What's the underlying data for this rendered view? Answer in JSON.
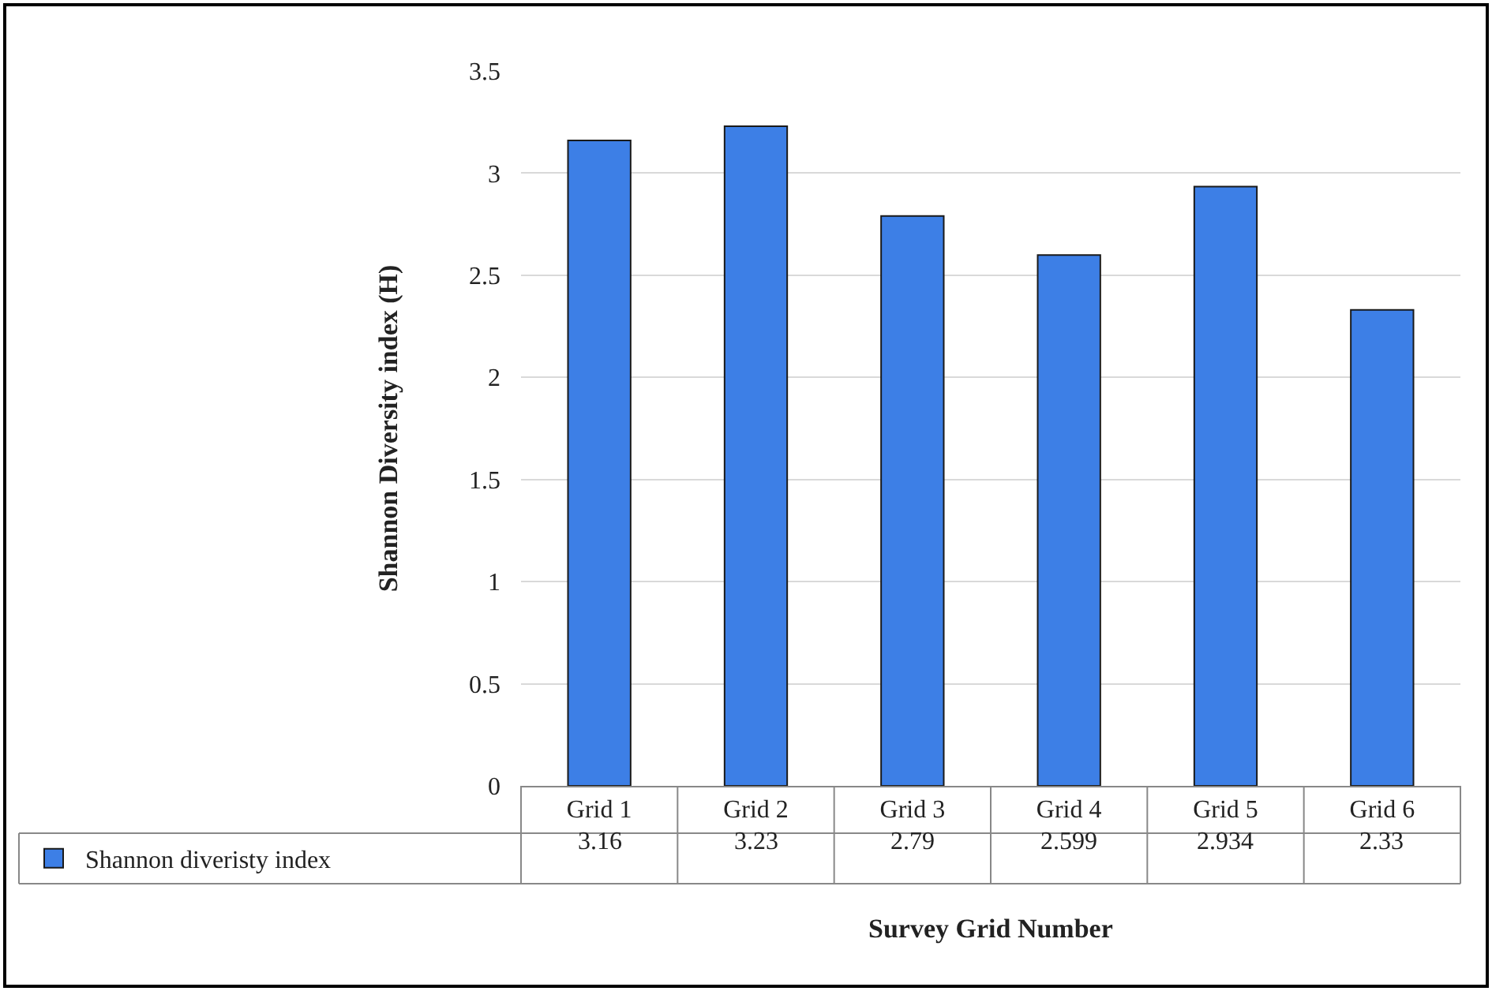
{
  "chart_data": {
    "type": "bar",
    "xlabel": "Survey Grid Number",
    "ylabel": "Shannon Diversity index (H)",
    "categories": [
      "Grid 1",
      "Grid 2",
      "Grid 3",
      "Grid 4",
      "Grid 5",
      "Grid 6"
    ],
    "series": [
      {
        "name": "Shannon diveristy index",
        "color": "#3d7fe6",
        "values": [
          3.16,
          3.23,
          2.79,
          2.599,
          2.934,
          2.33
        ]
      }
    ],
    "ylim": [
      0,
      3.5
    ],
    "yticks": [
      0,
      0.5,
      1,
      1.5,
      2,
      2.5,
      3,
      3.5
    ],
    "grid": "y",
    "legend": "bottom left",
    "data_labels": true
  }
}
